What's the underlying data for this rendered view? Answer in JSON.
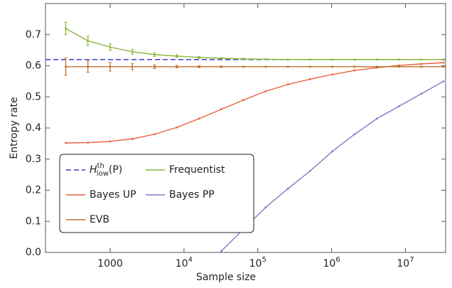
{
  "chart_data": {
    "type": "line",
    "x_label": "Sample size",
    "y_label": "Entropy rate",
    "xscale": "log",
    "xlim": [
      133,
      35000000
    ],
    "ylim": [
      0,
      0.8
    ],
    "xticks": [
      1000,
      {
        "value": 10000,
        "label": "10",
        "exp": "4"
      },
      {
        "value": 100000,
        "label": "10",
        "exp": "5"
      },
      {
        "value": 1000000,
        "label": "10",
        "exp": "6"
      },
      {
        "value": 10000000,
        "label": "10",
        "exp": "7"
      }
    ],
    "yticks": [
      {
        "value": 0,
        "label": "0.0"
      },
      0.1,
      0.2,
      0.3,
      0.4,
      0.5,
      0.6,
      0.7
    ],
    "legend": "lower left",
    "hline": {
      "name": "H",
      "name_sup": "th",
      "name_sub": "low",
      "name_suffix": "(P)",
      "color": "#3b3bd0",
      "value": 0.62,
      "dashed": true
    },
    "x": [
      250,
      500,
      1000,
      2000,
      4000,
      8000,
      16000,
      32000,
      64000,
      128000,
      256000,
      512000,
      1024000,
      2048000,
      4096000,
      8192000,
      16384000,
      32768000
    ],
    "series": [
      {
        "name": "Frequentist",
        "color": "#8bb53a",
        "values": [
          0.72,
          0.68,
          0.66,
          0.645,
          0.636,
          0.631,
          0.627,
          0.624,
          0.622,
          0.621,
          0.62,
          0.62,
          0.62,
          0.62,
          0.62,
          0.62,
          0.62,
          0.62
        ],
        "errors": [
          0.02,
          0.015,
          0.01,
          0.008,
          0.006,
          0.004,
          0.003,
          0.002,
          0.002,
          0.001,
          0.001,
          0.001,
          0.001,
          0.001,
          0.001,
          0.001,
          0.001,
          0.001
        ]
      },
      {
        "name": "Bayes UP",
        "color": "#e8603c",
        "values": [
          0.352,
          0.353,
          0.357,
          0.365,
          0.38,
          0.402,
          0.43,
          0.46,
          0.49,
          0.518,
          0.54,
          0.557,
          0.572,
          0.585,
          0.594,
          0.601,
          0.606,
          0.61
        ]
      },
      {
        "name": "Bayes PP",
        "color": "#7d7dc4",
        "values": [
          null,
          null,
          null,
          null,
          null,
          null,
          null,
          0.004,
          0.075,
          0.145,
          0.205,
          0.262,
          0.325,
          0.38,
          0.43,
          0.47,
          0.51,
          0.55
        ]
      },
      {
        "name": "EVB",
        "color": "#c0712c",
        "values": [
          0.597,
          0.597,
          0.597,
          0.597,
          0.597,
          0.597,
          0.597,
          0.597,
          0.597,
          0.597,
          0.597,
          0.597,
          0.597,
          0.597,
          0.597,
          0.597,
          0.597,
          0.597
        ],
        "errors": [
          0.028,
          0.018,
          0.014,
          0.01,
          0.006,
          0.004,
          0.003,
          0.002,
          0.001,
          0.001,
          0.001,
          0.001,
          0.001,
          0.001,
          0.001,
          0.001,
          0.001,
          0.001
        ]
      }
    ]
  }
}
